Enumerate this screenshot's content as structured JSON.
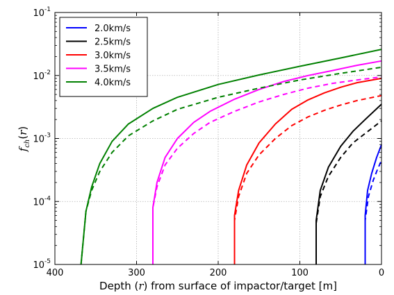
{
  "chart_data": {
    "type": "line",
    "xlabel": "Depth (r) from surface of impactor/target [m]",
    "ylabel": "f_ch(r)",
    "x_ticks": [
      "400",
      "300",
      "200",
      "100",
      "0"
    ],
    "y_ticks": [
      {
        "base": "10",
        "exp": "-5"
      },
      {
        "base": "10",
        "exp": "-4"
      },
      {
        "base": "10",
        "exp": "-3"
      },
      {
        "base": "10",
        "exp": "-2"
      },
      {
        "base": "10",
        "exp": "-1"
      }
    ],
    "xlim": [
      400,
      0
    ],
    "ylim": [
      1e-05,
      0.1
    ],
    "yscale": "log",
    "x_reversed": true,
    "grid": true,
    "legend_position": "top-left",
    "series": [
      {
        "name": "2.0km/s",
        "color": "#0000ff",
        "solid": [
          [
            20,
            1e-05
          ],
          [
            20,
            6e-05
          ],
          [
            17,
            0.00015
          ],
          [
            12,
            0.00028
          ],
          [
            6,
            0.0005
          ],
          [
            0,
            0.0008
          ]
        ],
        "dashed": [
          [
            20,
            1e-05
          ],
          [
            20,
            5e-05
          ],
          [
            16,
            0.00012
          ],
          [
            10,
            0.00022
          ],
          [
            5,
            0.00032
          ],
          [
            0,
            0.00045
          ]
        ]
      },
      {
        "name": "2.5km/s",
        "color": "#000000",
        "solid": [
          [
            80,
            1e-05
          ],
          [
            80,
            5e-05
          ],
          [
            75,
            0.00015
          ],
          [
            65,
            0.00035
          ],
          [
            50,
            0.00075
          ],
          [
            35,
            0.0013
          ],
          [
            20,
            0.002
          ],
          [
            0,
            0.0035
          ]
        ],
        "dashed": [
          [
            80,
            1e-05
          ],
          [
            80,
            4.5e-05
          ],
          [
            75,
            0.00012
          ],
          [
            65,
            0.00025
          ],
          [
            50,
            0.0005
          ],
          [
            35,
            0.00085
          ],
          [
            20,
            0.0012
          ],
          [
            0,
            0.0019
          ]
        ]
      },
      {
        "name": "3.0km/s",
        "color": "#ff0000",
        "solid": [
          [
            180,
            1e-05
          ],
          [
            180,
            6e-05
          ],
          [
            175,
            0.00015
          ],
          [
            165,
            0.00038
          ],
          [
            150,
            0.00085
          ],
          [
            130,
            0.0017
          ],
          [
            110,
            0.0029
          ],
          [
            90,
            0.0041
          ],
          [
            70,
            0.0053
          ],
          [
            50,
            0.0065
          ],
          [
            30,
            0.0077
          ],
          [
            0,
            0.009
          ]
        ],
        "dashed": [
          [
            180,
            1e-05
          ],
          [
            180,
            5e-05
          ],
          [
            175,
            0.00012
          ],
          [
            165,
            0.00028
          ],
          [
            150,
            0.00055
          ],
          [
            130,
            0.001
          ],
          [
            110,
            0.0016
          ],
          [
            90,
            0.0022
          ],
          [
            70,
            0.0028
          ],
          [
            50,
            0.0034
          ],
          [
            30,
            0.004
          ],
          [
            0,
            0.0048
          ]
        ]
      },
      {
        "name": "3.5km/s",
        "color": "#ff00ff",
        "solid": [
          [
            280,
            1e-05
          ],
          [
            280,
            8e-05
          ],
          [
            275,
            0.0002
          ],
          [
            265,
            0.0005
          ],
          [
            250,
            0.001
          ],
          [
            230,
            0.0018
          ],
          [
            210,
            0.0027
          ],
          [
            180,
            0.0042
          ],
          [
            150,
            0.006
          ],
          [
            120,
            0.008
          ],
          [
            90,
            0.01
          ],
          [
            60,
            0.012
          ],
          [
            30,
            0.0145
          ],
          [
            0,
            0.017
          ]
        ],
        "dashed": [
          [
            280,
            1e-05
          ],
          [
            280,
            8e-05
          ],
          [
            275,
            0.00017
          ],
          [
            265,
            0.00038
          ],
          [
            250,
            0.0007
          ],
          [
            230,
            0.0012
          ],
          [
            210,
            0.0018
          ],
          [
            180,
            0.0027
          ],
          [
            150,
            0.0038
          ],
          [
            120,
            0.005
          ],
          [
            90,
            0.0063
          ],
          [
            60,
            0.0075
          ],
          [
            30,
            0.0085
          ],
          [
            0,
            0.0095
          ]
        ]
      },
      {
        "name": "4.0km/s",
        "color": "#008000",
        "solid": [
          [
            368,
            1e-05
          ],
          [
            362,
            7e-05
          ],
          [
            355,
            0.00017
          ],
          [
            345,
            0.0004
          ],
          [
            330,
            0.0009
          ],
          [
            310,
            0.0017
          ],
          [
            280,
            0.003
          ],
          [
            250,
            0.0045
          ],
          [
            200,
            0.0072
          ],
          [
            150,
            0.0102
          ],
          [
            100,
            0.014
          ],
          [
            50,
            0.019
          ],
          [
            0,
            0.026
          ]
        ],
        "dashed": [
          [
            368,
            1e-05
          ],
          [
            362,
            7e-05
          ],
          [
            355,
            0.00015
          ],
          [
            345,
            0.0003
          ],
          [
            330,
            0.0006
          ],
          [
            310,
            0.0011
          ],
          [
            280,
            0.0019
          ],
          [
            250,
            0.0029
          ],
          [
            200,
            0.0045
          ],
          [
            150,
            0.0063
          ],
          [
            100,
            0.0085
          ],
          [
            50,
            0.0108
          ],
          [
            0,
            0.0135
          ]
        ]
      }
    ]
  }
}
